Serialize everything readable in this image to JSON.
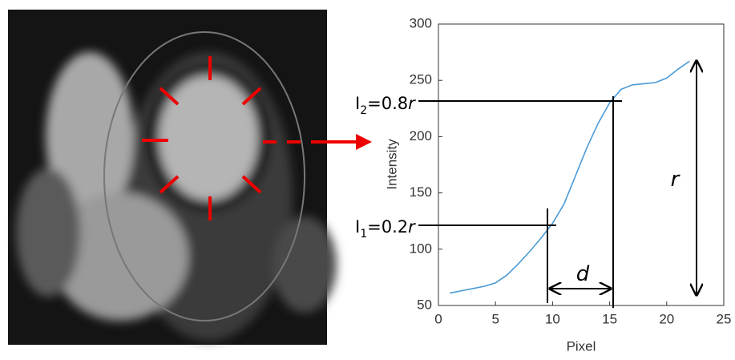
{
  "chart_data": {
    "type": "line",
    "xlabel": "Pixel",
    "ylabel": "Intensity",
    "x": [
      1,
      2,
      3,
      4,
      5,
      6,
      7,
      8,
      9,
      10,
      11,
      12,
      13,
      14,
      15,
      16,
      17,
      18,
      19,
      20,
      21,
      22
    ],
    "series": [
      {
        "color": "#4a9ad6",
        "values": [
          61,
          63,
          65,
          67,
          70,
          77,
          87,
          98,
          110,
          123,
          140,
          165,
          190,
          212,
          230,
          242,
          246,
          247,
          248,
          252,
          260,
          267
        ]
      }
    ],
    "xlim": [
      0,
      25
    ],
    "xticks": [
      0,
      5,
      10,
      15,
      20,
      25
    ],
    "ylim": [
      50,
      300
    ],
    "yticks": [
      50,
      100,
      150,
      200,
      250,
      300
    ],
    "annotations": {
      "upper": {
        "base": "I",
        "sub": "2",
        "rest": "=0.8",
        "var": "r"
      },
      "lower": {
        "base": "I",
        "sub": "1",
        "rest": "=0.2",
        "var": "r"
      },
      "distance": "d",
      "range": "r"
    }
  }
}
